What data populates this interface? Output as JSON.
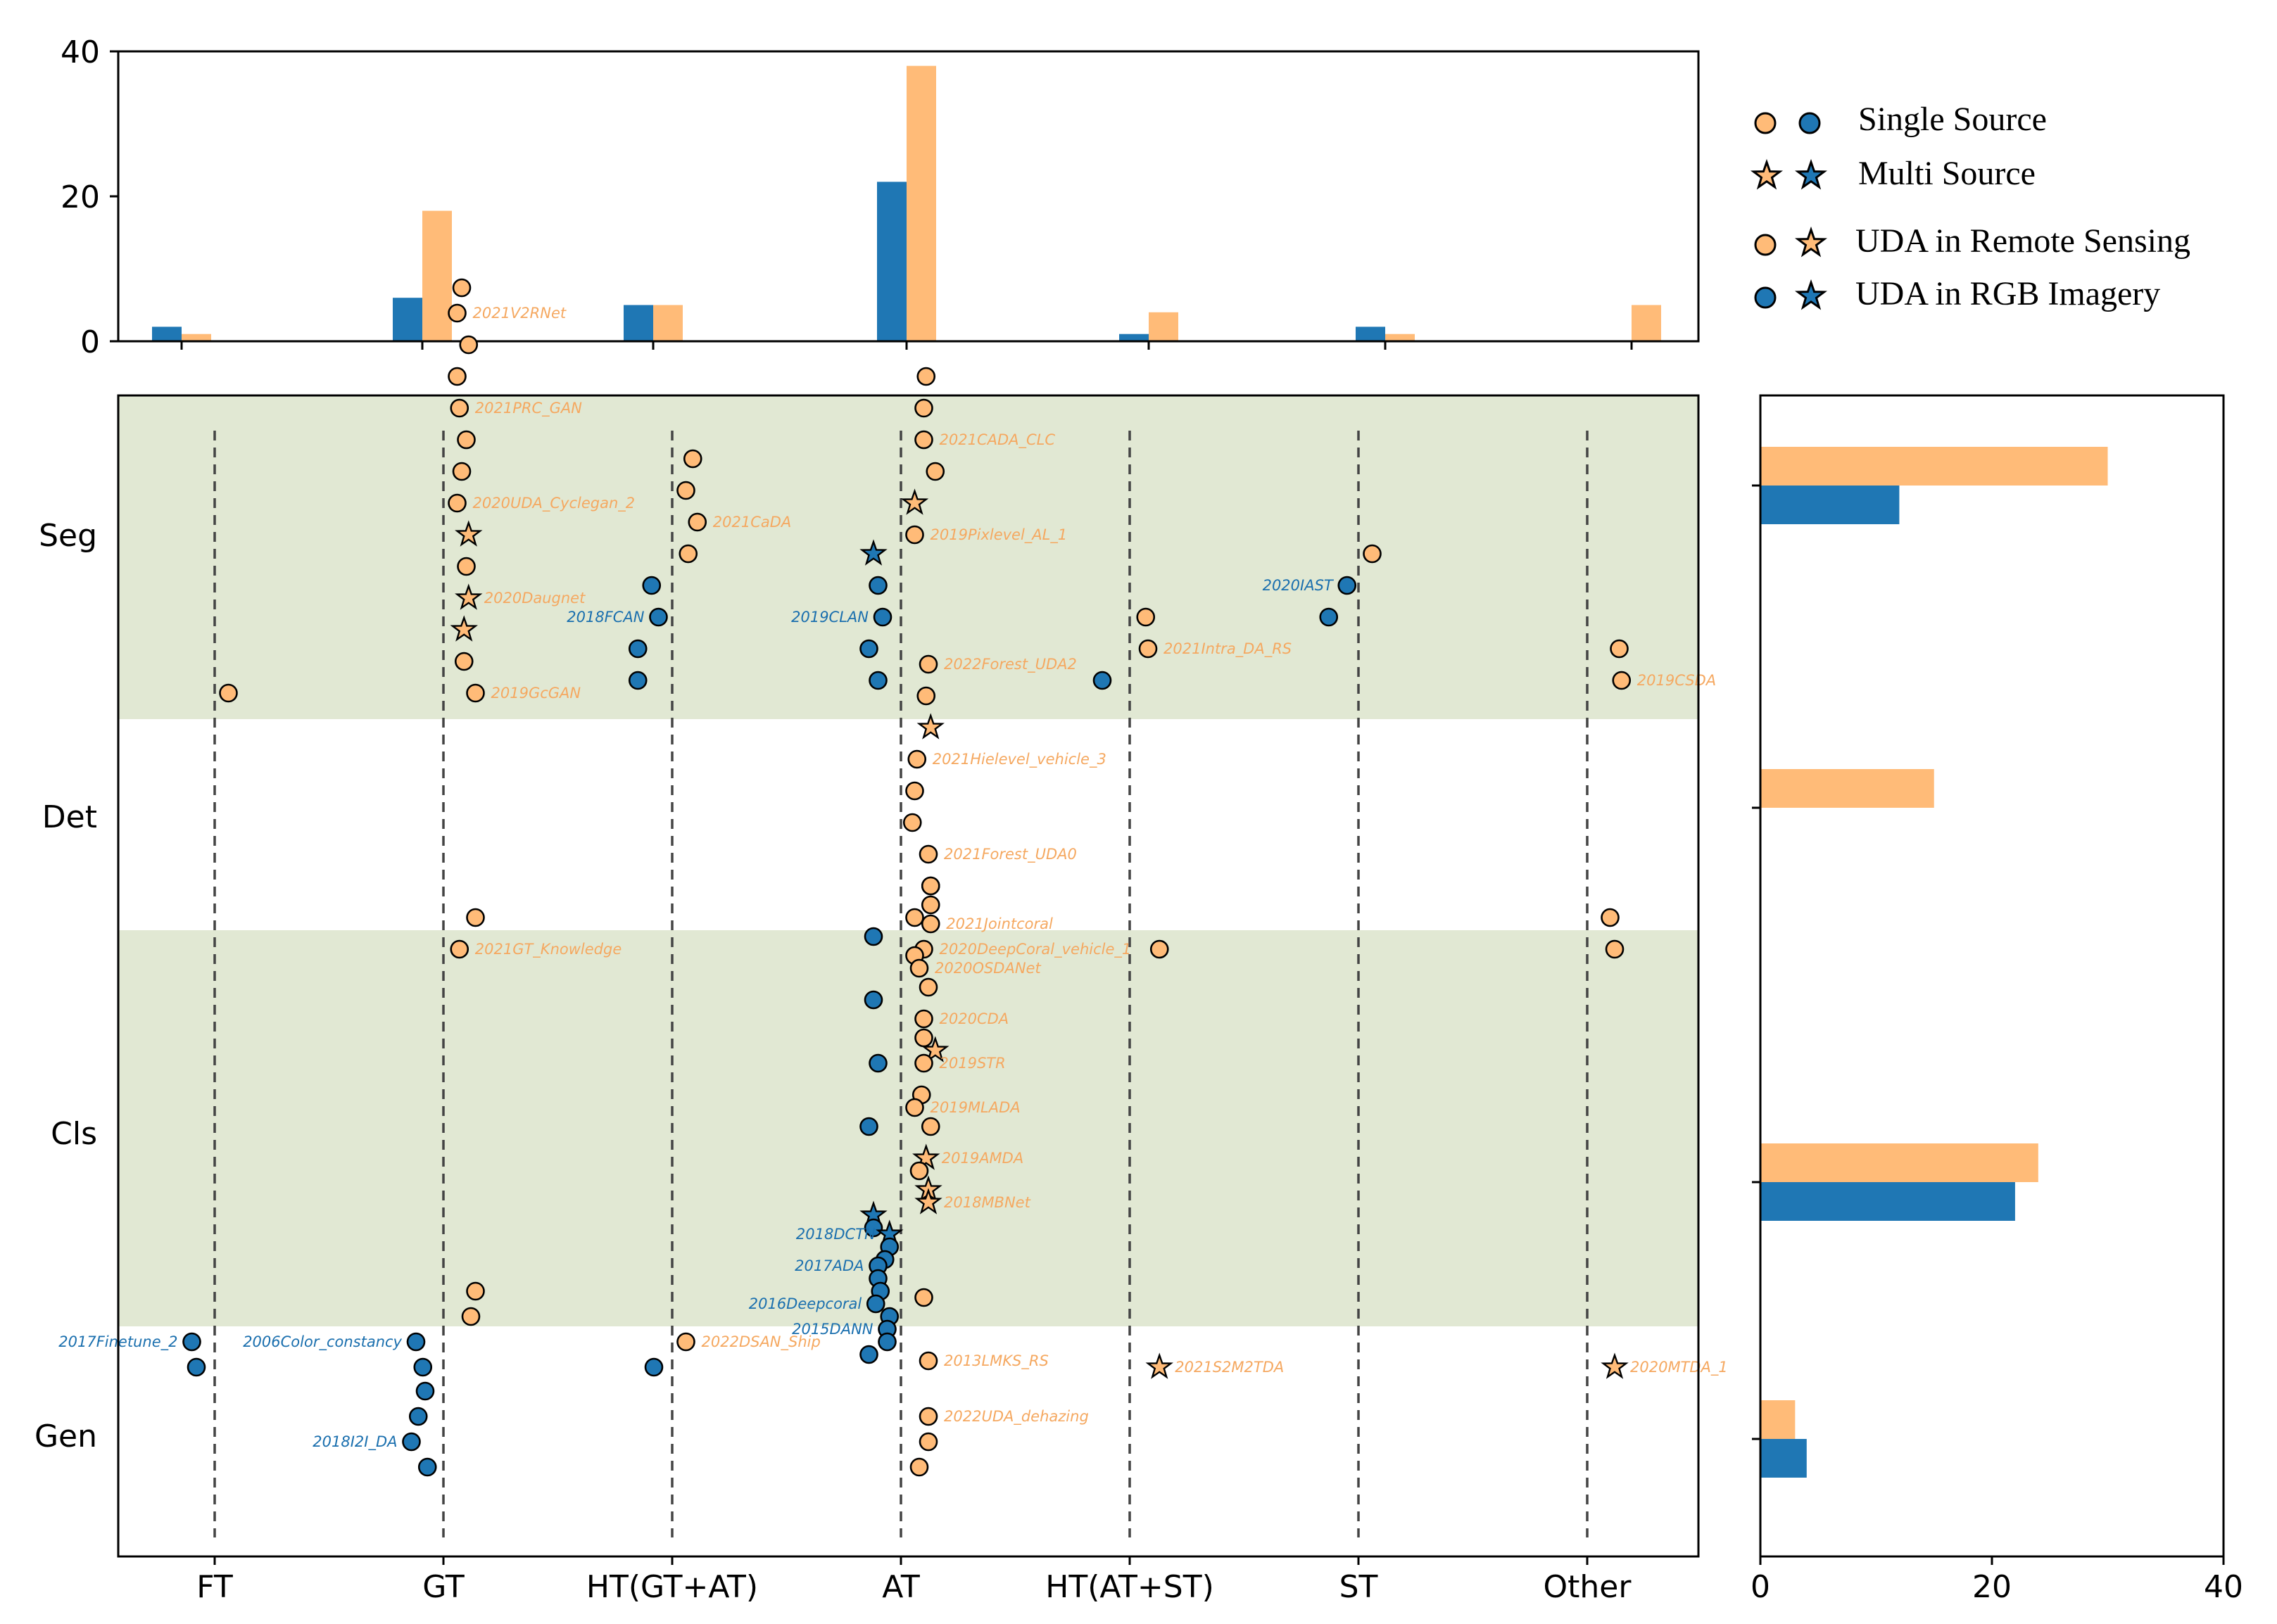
{
  "colors": {
    "rgb": "#1f77b4",
    "rs": "#ffbb78",
    "band": "#e1e8d3",
    "edge": "#000000"
  },
  "chart_data": [
    {
      "name": "method-type-count",
      "type": "bar",
      "categories": [
        "FT",
        "GT",
        "HT(GT+AT)",
        "AT",
        "HT(AT+ST)",
        "ST",
        "Other"
      ],
      "series": [
        {
          "name": "UDA in RGB Imagery",
          "values": [
            2,
            6,
            5,
            22,
            1,
            2,
            0
          ]
        },
        {
          "name": "UDA in Remote Sensing",
          "values": [
            1,
            18,
            5,
            38,
            4,
            1,
            5
          ]
        }
      ],
      "ylim": [
        0,
        40
      ],
      "yticks": [
        0,
        20,
        40
      ]
    },
    {
      "name": "task-count",
      "type": "bar",
      "orientation": "horizontal",
      "categories": [
        "Seg",
        "Det",
        "Cls",
        "Gen"
      ],
      "series": [
        {
          "name": "UDA in RGB Imagery",
          "values": [
            12,
            0,
            22,
            4
          ]
        },
        {
          "name": "UDA in Remote Sensing",
          "values": [
            30,
            15,
            24,
            3
          ]
        }
      ],
      "xlim": [
        0,
        40
      ],
      "xticks": [
        0,
        20,
        40
      ]
    },
    {
      "name": "method-task-scatter",
      "type": "scatter",
      "x_categories": [
        "FT",
        "GT",
        "HT(GT+AT)",
        "AT",
        "HT(AT+ST)",
        "ST",
        "Other"
      ],
      "y_categories": [
        "Seg",
        "Det",
        "Cls",
        "Gen"
      ],
      "bands": [
        "Seg",
        "Cls"
      ],
      "points": [
        {
          "x": "GT",
          "y": "Seg",
          "o": -0.39,
          "j": 0.08,
          "d": "rs",
          "m": "o"
        },
        {
          "x": "GT",
          "y": "Seg",
          "o": -0.35,
          "j": 0.06,
          "d": "rs",
          "m": "o",
          "label": "2021V2RNet"
        },
        {
          "x": "GT",
          "y": "Seg",
          "o": -0.3,
          "j": 0.11,
          "d": "rs",
          "m": "o"
        },
        {
          "x": "GT",
          "y": "Seg",
          "o": -0.25,
          "j": 0.06,
          "d": "rs",
          "m": "o"
        },
        {
          "x": "GT",
          "y": "Seg",
          "o": -0.2,
          "j": 0.07,
          "d": "rs",
          "m": "o",
          "label": "2021PRC_GAN"
        },
        {
          "x": "GT",
          "y": "Seg",
          "o": -0.15,
          "j": 0.1,
          "d": "rs",
          "m": "o"
        },
        {
          "x": "GT",
          "y": "Seg",
          "o": -0.1,
          "j": 0.08,
          "d": "rs",
          "m": "o"
        },
        {
          "x": "GT",
          "y": "Seg",
          "o": -0.05,
          "j": 0.06,
          "d": "rs",
          "m": "o",
          "label": "2020UDA_Cyclegan_2"
        },
        {
          "x": "GT",
          "y": "Seg",
          "o": 0.0,
          "j": 0.11,
          "d": "rs",
          "m": "*"
        },
        {
          "x": "GT",
          "y": "Seg",
          "o": 0.05,
          "j": 0.1,
          "d": "rs",
          "m": "o"
        },
        {
          "x": "GT",
          "y": "Seg",
          "o": 0.1,
          "j": 0.11,
          "d": "rs",
          "m": "*",
          "label": "2020Daugnet"
        },
        {
          "x": "GT",
          "y": "Seg",
          "o": 0.15,
          "j": 0.09,
          "d": "rs",
          "m": "*"
        },
        {
          "x": "GT",
          "y": "Seg",
          "o": 0.2,
          "j": 0.09,
          "d": "rs",
          "m": "o"
        },
        {
          "x": "GT",
          "y": "Seg",
          "o": 0.25,
          "j": 0.14,
          "d": "rs",
          "m": "o",
          "label": "2019GcGAN"
        },
        {
          "x": "FT",
          "y": "Seg",
          "o": 0.25,
          "j": 0.06,
          "d": "rs",
          "m": "o"
        },
        {
          "x": "HT(GT+AT)",
          "y": "Seg",
          "o": -0.12,
          "j": 0.09,
          "d": "rs",
          "m": "o"
        },
        {
          "x": "HT(GT+AT)",
          "y": "Seg",
          "o": -0.07,
          "j": 0.06,
          "d": "rs",
          "m": "o"
        },
        {
          "x": "HT(GT+AT)",
          "y": "Seg",
          "o": -0.02,
          "j": 0.11,
          "d": "rs",
          "m": "o",
          "label": "2021CaDA"
        },
        {
          "x": "HT(GT+AT)",
          "y": "Seg",
          "o": 0.03,
          "j": 0.07,
          "d": "rs",
          "m": "o"
        },
        {
          "x": "HT(GT+AT)",
          "y": "Seg",
          "o": 0.08,
          "j": -0.09,
          "d": "rgb",
          "m": "o"
        },
        {
          "x": "HT(GT+AT)",
          "y": "Seg",
          "o": 0.13,
          "j": -0.06,
          "d": "rgb",
          "m": "o",
          "label": "2018FCAN",
          "lside": "left"
        },
        {
          "x": "HT(GT+AT)",
          "y": "Seg",
          "o": 0.18,
          "j": -0.15,
          "d": "rgb",
          "m": "o"
        },
        {
          "x": "HT(GT+AT)",
          "y": "Seg",
          "o": 0.23,
          "j": -0.15,
          "d": "rgb",
          "m": "o"
        },
        {
          "x": "AT",
          "y": "Seg",
          "o": -0.25,
          "j": 0.11,
          "d": "rs",
          "m": "o"
        },
        {
          "x": "AT",
          "y": "Seg",
          "o": -0.2,
          "j": 0.1,
          "d": "rs",
          "m": "o"
        },
        {
          "x": "AT",
          "y": "Seg",
          "o": -0.15,
          "j": 0.1,
          "d": "rs",
          "m": "o",
          "label": "2021CADA_CLC"
        },
        {
          "x": "AT",
          "y": "Seg",
          "o": -0.1,
          "j": 0.15,
          "d": "rs",
          "m": "o"
        },
        {
          "x": "AT",
          "y": "Seg",
          "o": -0.05,
          "j": 0.06,
          "d": "rs",
          "m": "*"
        },
        {
          "x": "AT",
          "y": "Seg",
          "o": 0.0,
          "j": 0.06,
          "d": "rs",
          "m": "o",
          "label": "2019Pixlevel_AL_1"
        },
        {
          "x": "AT",
          "y": "Seg",
          "o": 0.03,
          "j": -0.12,
          "d": "rgb",
          "m": "*"
        },
        {
          "x": "AT",
          "y": "Seg",
          "o": 0.08,
          "j": -0.1,
          "d": "rgb",
          "m": "o"
        },
        {
          "x": "AT",
          "y": "Seg",
          "o": 0.13,
          "j": -0.08,
          "d": "rgb",
          "m": "o",
          "label": "2019CLAN",
          "lside": "left"
        },
        {
          "x": "AT",
          "y": "Seg",
          "o": 0.18,
          "j": -0.14,
          "d": "rgb",
          "m": "o"
        },
        {
          "x": "AT",
          "y": "Seg",
          "o": 0.23,
          "j": -0.1,
          "d": "rgb",
          "m": "o"
        },
        {
          "x": "HT(AT+ST)",
          "y": "Seg",
          "o": 0.13,
          "j": 0.07,
          "d": "rs",
          "m": "o"
        },
        {
          "x": "HT(AT+ST)",
          "y": "Seg",
          "o": 0.18,
          "j": 0.08,
          "d": "rs",
          "m": "o",
          "label": "2021Intra_DA_RS"
        },
        {
          "x": "HT(AT+ST)",
          "y": "Seg",
          "o": 0.23,
          "j": -0.12,
          "d": "rgb",
          "m": "o"
        },
        {
          "x": "ST",
          "y": "Seg",
          "o": 0.03,
          "j": 0.06,
          "d": "rs",
          "m": "o"
        },
        {
          "x": "ST",
          "y": "Seg",
          "o": 0.08,
          "j": -0.05,
          "d": "rgb",
          "m": "o",
          "label": "2020IAST",
          "lside": "left"
        },
        {
          "x": "ST",
          "y": "Seg",
          "o": 0.13,
          "j": -0.13,
          "d": "rgb",
          "m": "o"
        },
        {
          "x": "Other",
          "y": "Seg",
          "o": 0.18,
          "j": 0.14,
          "d": "rs",
          "m": "o"
        },
        {
          "x": "Other",
          "y": "Seg",
          "o": 0.23,
          "j": 0.15,
          "d": "rs",
          "m": "o",
          "label": "2019CSDA"
        },
        {
          "x": "AT",
          "y": "Det",
          "o": -0.24,
          "j": 0.12,
          "d": "rs",
          "m": "o",
          "label": "2022Forest_UDA2"
        },
        {
          "x": "AT",
          "y": "Det",
          "o": -0.19,
          "j": 0.11,
          "d": "rs",
          "m": "o"
        },
        {
          "x": "AT",
          "y": "Det",
          "o": -0.14,
          "j": 0.13,
          "d": "rs",
          "m": "*"
        },
        {
          "x": "AT",
          "y": "Det",
          "o": -0.09,
          "j": 0.07,
          "d": "rs",
          "m": "o",
          "label": "2021Hielevel_vehicle_3"
        },
        {
          "x": "AT",
          "y": "Det",
          "o": -0.04,
          "j": 0.06,
          "d": "rs",
          "m": "o"
        },
        {
          "x": "AT",
          "y": "Det",
          "o": 0.01,
          "j": 0.05,
          "d": "rs",
          "m": "o"
        },
        {
          "x": "AT",
          "y": "Det",
          "o": 0.06,
          "j": 0.12,
          "d": "rs",
          "m": "o",
          "label": "2021Forest_UDA0"
        },
        {
          "x": "AT",
          "y": "Det",
          "o": 0.11,
          "j": 0.13,
          "d": "rs",
          "m": "o"
        },
        {
          "x": "AT",
          "y": "Det",
          "o": 0.16,
          "j": 0.06,
          "d": "rs",
          "m": "o"
        },
        {
          "x": "AT",
          "y": "Det",
          "o": 0.21,
          "j": 0.1,
          "d": "rs",
          "m": "o",
          "label": "2020DeepCoral_vehicle_1"
        },
        {
          "x": "HT(AT+ST)",
          "y": "Det",
          "o": 0.21,
          "j": 0.13,
          "d": "rs",
          "m": "o"
        },
        {
          "x": "GT",
          "y": "Det",
          "o": 0.16,
          "j": 0.14,
          "d": "rs",
          "m": "o"
        },
        {
          "x": "GT",
          "y": "Det",
          "o": 0.21,
          "j": 0.07,
          "d": "rs",
          "m": "o",
          "label": "2021GT_Knowledge"
        },
        {
          "x": "Other",
          "y": "Det",
          "o": 0.16,
          "j": 0.1,
          "d": "rs",
          "m": "o"
        },
        {
          "x": "Other",
          "y": "Det",
          "o": 0.21,
          "j": 0.12,
          "d": "rs",
          "m": "o"
        },
        {
          "x": "AT",
          "y": "Cls",
          "o": -0.39,
          "j": 0.13,
          "d": "rs",
          "m": "o"
        },
        {
          "x": "AT",
          "y": "Cls",
          "o": -0.36,
          "j": 0.13,
          "d": "rs",
          "m": "o"
        },
        {
          "x": "AT",
          "y": "Cls",
          "o": -0.33,
          "j": 0.13,
          "d": "rs",
          "m": "o",
          "label": "2021Jointcoral"
        },
        {
          "x": "AT",
          "y": "Cls",
          "o": -0.28,
          "j": 0.06,
          "d": "rs",
          "m": "o"
        },
        {
          "x": "AT",
          "y": "Cls",
          "o": -0.26,
          "j": 0.08,
          "d": "rs",
          "m": "o",
          "label": "2020OSDANet"
        },
        {
          "x": "AT",
          "y": "Cls",
          "o": -0.23,
          "j": 0.12,
          "d": "rs",
          "m": "o"
        },
        {
          "x": "AT",
          "y": "Cls",
          "o": -0.18,
          "j": 0.1,
          "d": "rs",
          "m": "o",
          "label": "2020CDA"
        },
        {
          "x": "AT",
          "y": "Cls",
          "o": -0.15,
          "j": 0.1,
          "d": "rs",
          "m": "o"
        },
        {
          "x": "AT",
          "y": "Cls",
          "o": -0.13,
          "j": 0.15,
          "d": "rs",
          "m": "*"
        },
        {
          "x": "AT",
          "y": "Cls",
          "o": -0.11,
          "j": 0.1,
          "d": "rs",
          "m": "o",
          "label": "2019STR"
        },
        {
          "x": "AT",
          "y": "Cls",
          "o": -0.06,
          "j": 0.09,
          "d": "rs",
          "m": "o"
        },
        {
          "x": "AT",
          "y": "Cls",
          "o": -0.04,
          "j": 0.06,
          "d": "rs",
          "m": "o",
          "label": "2019MLADA"
        },
        {
          "x": "AT",
          "y": "Cls",
          "o": -0.01,
          "j": 0.13,
          "d": "rs",
          "m": "o"
        },
        {
          "x": "AT",
          "y": "Cls",
          "o": 0.04,
          "j": 0.11,
          "d": "rs",
          "m": "*",
          "label": "2019AMDA"
        },
        {
          "x": "AT",
          "y": "Cls",
          "o": 0.06,
          "j": 0.08,
          "d": "rs",
          "m": "o"
        },
        {
          "x": "AT",
          "y": "Cls",
          "o": 0.09,
          "j": 0.12,
          "d": "rs",
          "m": "*"
        },
        {
          "x": "AT",
          "y": "Cls",
          "o": 0.11,
          "j": 0.12,
          "d": "rs",
          "m": "*",
          "label": "2018MBNet"
        },
        {
          "x": "AT",
          "y": "Cls",
          "o": 0.26,
          "j": 0.1,
          "d": "rs",
          "m": "o"
        },
        {
          "x": "AT",
          "y": "Cls",
          "o": 0.36,
          "j": 0.12,
          "d": "rs",
          "m": "o",
          "label": "2013LMKS_RS"
        },
        {
          "x": "AT",
          "y": "Cls",
          "o": -0.31,
          "j": -0.12,
          "d": "rgb",
          "m": "o"
        },
        {
          "x": "AT",
          "y": "Cls",
          "o": -0.21,
          "j": -0.12,
          "d": "rgb",
          "m": "o"
        },
        {
          "x": "AT",
          "y": "Cls",
          "o": -0.11,
          "j": -0.1,
          "d": "rgb",
          "m": "o"
        },
        {
          "x": "AT",
          "y": "Cls",
          "o": -0.01,
          "j": -0.14,
          "d": "rgb",
          "m": "o"
        },
        {
          "x": "AT",
          "y": "Cls",
          "o": 0.13,
          "j": -0.12,
          "d": "rgb",
          "m": "*"
        },
        {
          "x": "AT",
          "y": "Cls",
          "o": 0.15,
          "j": -0.12,
          "d": "rgb",
          "m": "o"
        },
        {
          "x": "AT",
          "y": "Cls",
          "o": 0.16,
          "j": -0.05,
          "d": "rgb",
          "m": "*",
          "label": "2018DCTN",
          "lside": "left"
        },
        {
          "x": "AT",
          "y": "Cls",
          "o": 0.18,
          "j": -0.05,
          "d": "rgb",
          "m": "o"
        },
        {
          "x": "AT",
          "y": "Cls",
          "o": 0.2,
          "j": -0.07,
          "d": "rgb",
          "m": "o"
        },
        {
          "x": "AT",
          "y": "Cls",
          "o": 0.21,
          "j": -0.1,
          "d": "rgb",
          "m": "o",
          "label": "2017ADA",
          "lside": "left"
        },
        {
          "x": "AT",
          "y": "Cls",
          "o": 0.23,
          "j": -0.1,
          "d": "rgb",
          "m": "o"
        },
        {
          "x": "AT",
          "y": "Cls",
          "o": 0.25,
          "j": -0.09,
          "d": "rgb",
          "m": "o"
        },
        {
          "x": "AT",
          "y": "Cls",
          "o": 0.27,
          "j": -0.11,
          "d": "rgb",
          "m": "o",
          "label": "2016Deepcoral",
          "lside": "left"
        },
        {
          "x": "AT",
          "y": "Cls",
          "o": 0.29,
          "j": -0.05,
          "d": "rgb",
          "m": "o"
        },
        {
          "x": "AT",
          "y": "Cls",
          "o": 0.31,
          "j": -0.06,
          "d": "rgb",
          "m": "o",
          "label": "2015DANN",
          "lside": "left"
        },
        {
          "x": "AT",
          "y": "Cls",
          "o": 0.33,
          "j": -0.06,
          "d": "rgb",
          "m": "o"
        },
        {
          "x": "AT",
          "y": "Cls",
          "o": 0.35,
          "j": -0.14,
          "d": "rgb",
          "m": "o"
        },
        {
          "x": "GT",
          "y": "Cls",
          "o": 0.25,
          "j": 0.14,
          "d": "rs",
          "m": "o"
        },
        {
          "x": "GT",
          "y": "Cls",
          "o": 0.29,
          "j": 0.12,
          "d": "rs",
          "m": "o"
        },
        {
          "x": "GT",
          "y": "Cls",
          "o": 0.33,
          "j": -0.12,
          "d": "rgb",
          "m": "o",
          "label": "2006Color_constancy",
          "lside": "left"
        },
        {
          "x": "GT",
          "y": "Cls",
          "o": 0.37,
          "j": -0.09,
          "d": "rgb",
          "m": "o"
        },
        {
          "x": "FT",
          "y": "Cls",
          "o": 0.33,
          "j": -0.1,
          "d": "rgb",
          "m": "o",
          "label": "2017Finetune_2",
          "lside": "left"
        },
        {
          "x": "FT",
          "y": "Cls",
          "o": 0.37,
          "j": -0.08,
          "d": "rgb",
          "m": "o"
        },
        {
          "x": "HT(GT+AT)",
          "y": "Cls",
          "o": 0.33,
          "j": 0.06,
          "d": "rs",
          "m": "o",
          "label": "2022DSAN_Ship"
        },
        {
          "x": "HT(GT+AT)",
          "y": "Cls",
          "o": 0.37,
          "j": -0.08,
          "d": "rgb",
          "m": "o"
        },
        {
          "x": "HT(AT+ST)",
          "y": "Cls",
          "o": 0.37,
          "j": 0.13,
          "d": "rs",
          "m": "*",
          "label": "2021S2M2TDA"
        },
        {
          "x": "Other",
          "y": "Cls",
          "o": 0.37,
          "j": 0.12,
          "d": "rs",
          "m": "*",
          "label": "2020MTDA_1"
        },
        {
          "x": "GT",
          "y": "Gen",
          "o": -0.07,
          "j": -0.08,
          "d": "rgb",
          "m": "o"
        },
        {
          "x": "GT",
          "y": "Gen",
          "o": -0.03,
          "j": -0.11,
          "d": "rgb",
          "m": "o"
        },
        {
          "x": "GT",
          "y": "Gen",
          "o": 0.01,
          "j": -0.14,
          "d": "rgb",
          "m": "o",
          "label": "2018I2I_DA",
          "lside": "left"
        },
        {
          "x": "GT",
          "y": "Gen",
          "o": 0.05,
          "j": -0.07,
          "d": "rgb",
          "m": "o"
        },
        {
          "x": "AT",
          "y": "Gen",
          "o": -0.03,
          "j": 0.12,
          "d": "rs",
          "m": "o",
          "label": "2022UDA_dehazing"
        },
        {
          "x": "AT",
          "y": "Gen",
          "o": 0.01,
          "j": 0.12,
          "d": "rs",
          "m": "o"
        },
        {
          "x": "AT",
          "y": "Gen",
          "o": 0.05,
          "j": 0.08,
          "d": "rs",
          "m": "o"
        }
      ]
    }
  ],
  "legend": {
    "single_source": "Single Source",
    "multi_source": "Multi Source",
    "uda_rs": "UDA in Remote Sensing",
    "uda_rgb": "UDA in RGB Imagery"
  }
}
